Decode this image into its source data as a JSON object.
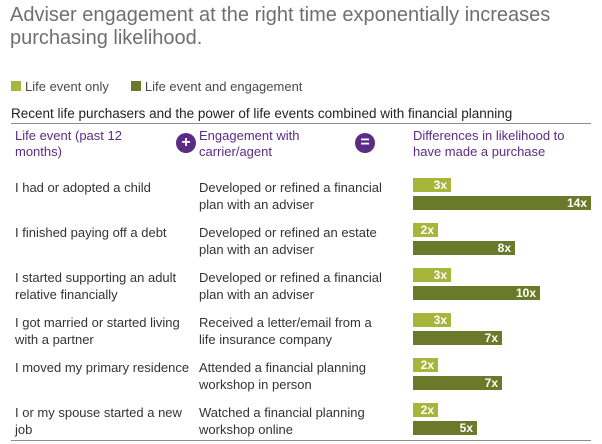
{
  "title": "Adviser engagement at the right time exponentially increases purchasing likelihood.",
  "legend": [
    {
      "label": "Life event only",
      "color": "#a5b63b"
    },
    {
      "label": "Life event and engagement",
      "color": "#6b7a2a"
    }
  ],
  "subtitle": "Recent life purchasers and the power of life events combined with financial planning",
  "headers": {
    "col1": "Life event (past 12 months)",
    "plus": "+",
    "col2": "Engagement with carrier/agent",
    "equals": "=",
    "col3": "Differences in likelihood to have made a purchase"
  },
  "colors": {
    "accent": "#5b2c86",
    "life_event_only": "#a5b63b",
    "life_event_and_engagement": "#6b7a2a"
  },
  "chart_data": {
    "type": "bar",
    "orientation": "horizontal",
    "title": "Recent life purchasers and the power of life events combined with financial planning",
    "categories": [
      "I had or adopted a child",
      "I finished paying off a debt",
      "I started supporting an adult relative financially",
      "I got married or started living with a partner",
      "I moved my primary residence",
      "I or my spouse started a new job"
    ],
    "series": [
      {
        "name": "Life event only",
        "values": [
          3,
          2,
          3,
          3,
          2,
          2
        ],
        "labels": [
          "3x",
          "2x",
          "3x",
          "3x",
          "2x",
          "2x"
        ]
      },
      {
        "name": "Life event and engagement",
        "values": [
          14,
          8,
          10,
          7,
          7,
          5
        ],
        "labels": [
          "14x",
          "8x",
          "10x",
          "7x",
          "7x",
          "5x"
        ]
      }
    ],
    "xlim": [
      0,
      14
    ],
    "grid": false,
    "legend_position": "top-left"
  },
  "rows": [
    {
      "event": "I had or adopted a child",
      "engagement": "Developed or refined a financial plan with an adviser"
    },
    {
      "event": "I finished paying off a debt",
      "engagement": "Developed or refined an estate plan with an adviser"
    },
    {
      "event": "I started supporting an adult relative financially",
      "engagement": "Developed or refined a financial plan with an adviser"
    },
    {
      "event": "I got married or started living with a partner",
      "engagement": "Received a letter/email from a life insurance company"
    },
    {
      "event": "I moved my primary residence",
      "engagement": "Attended a financial planning workshop in person"
    },
    {
      "event": "I or my spouse started a new job",
      "engagement": "Watched a financial planning workshop online"
    }
  ]
}
